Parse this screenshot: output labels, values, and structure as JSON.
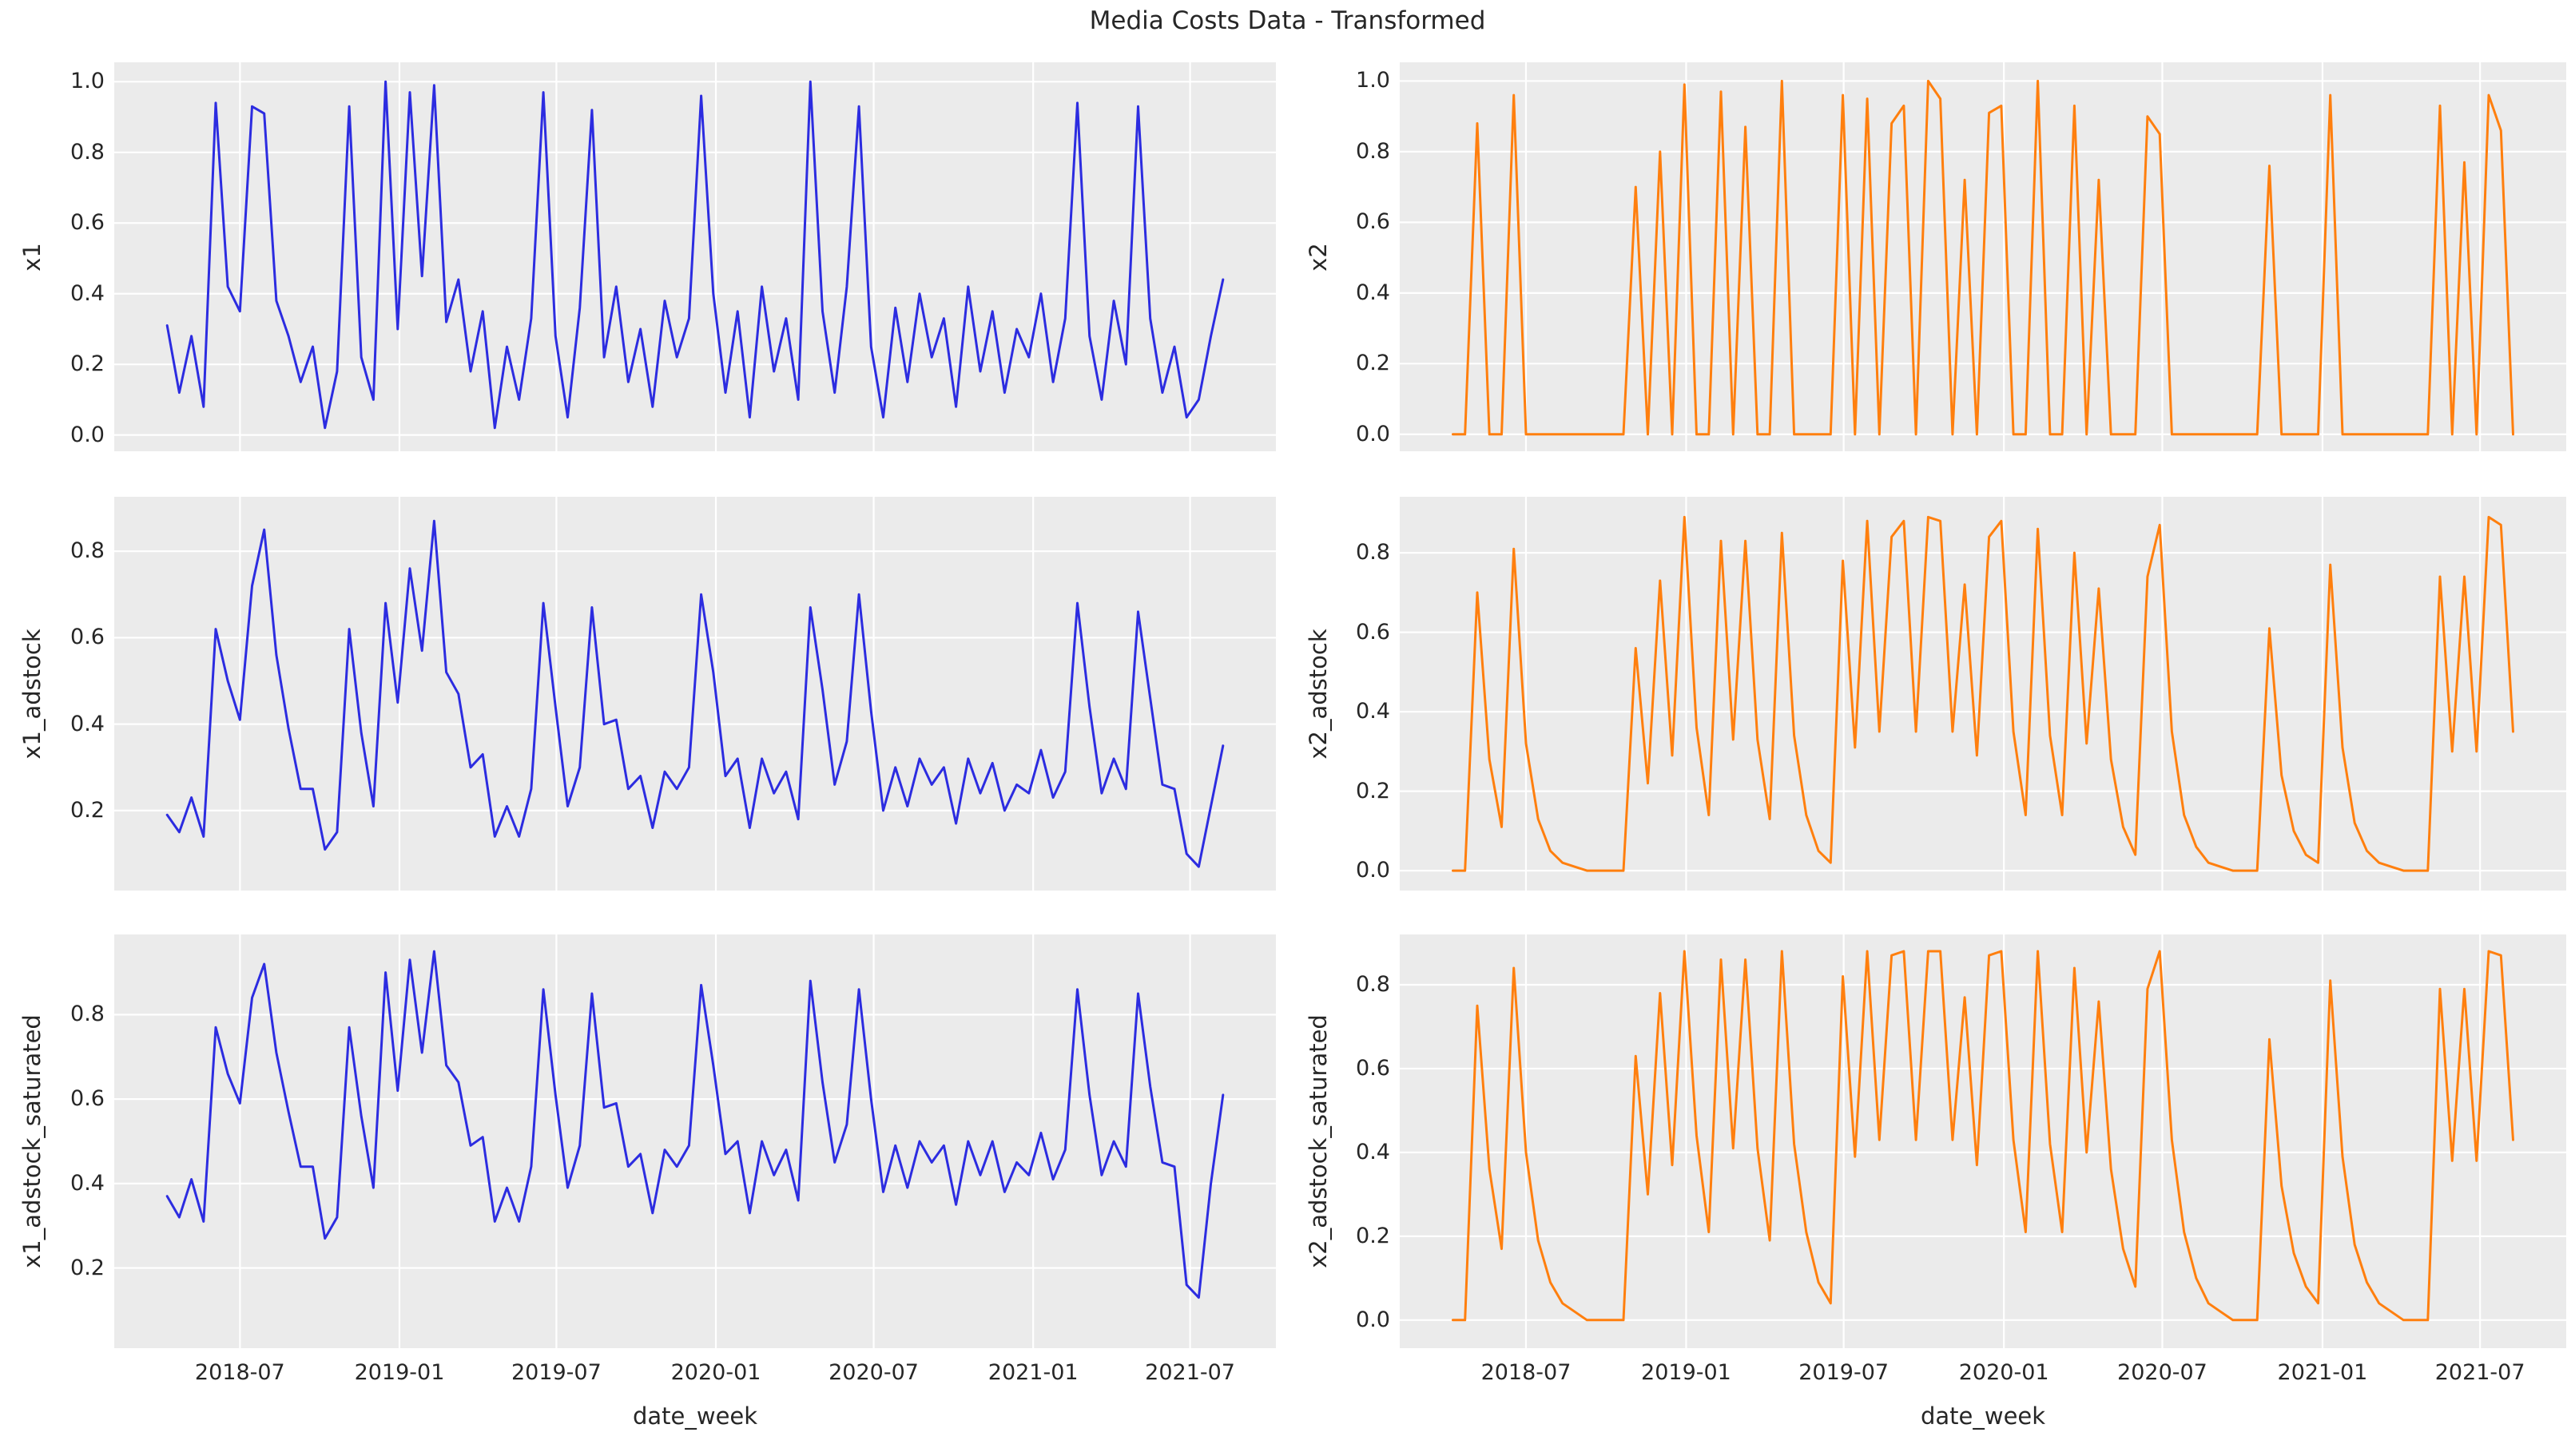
{
  "title": "Media Costs Data - Transformed",
  "xlabel": "date_week",
  "colors": {
    "x1_series": "#2c2ce0",
    "x2_series": "#ff7f0e",
    "axes_background": "#ebebeb",
    "grid": "#ffffff",
    "text": "#262626",
    "figure_background": "#ffffff"
  },
  "x_tick_labels": [
    "2018-07",
    "2019-01",
    "2019-07",
    "2020-01",
    "2020-07",
    "2021-01",
    "2021-07"
  ],
  "chart_data": {
    "type": "line",
    "layout": "3 rows x 2 columns of subplots, shared date x-axis",
    "grid": true,
    "legend": "none",
    "xlabel": "date_week",
    "xlim": [
      "2018-02-06",
      "2021-10-08"
    ],
    "x_dates": [
      "2018-04-08",
      "2018-04-22",
      "2018-05-06",
      "2018-05-20",
      "2018-06-03",
      "2018-06-17",
      "2018-07-01",
      "2018-07-15",
      "2018-07-29",
      "2018-08-12",
      "2018-08-26",
      "2018-09-09",
      "2018-09-23",
      "2018-10-07",
      "2018-10-21",
      "2018-11-04",
      "2018-11-18",
      "2018-12-02",
      "2018-12-16",
      "2018-12-30",
      "2019-01-13",
      "2019-01-27",
      "2019-02-10",
      "2019-02-24",
      "2019-03-10",
      "2019-03-24",
      "2019-04-07",
      "2019-04-21",
      "2019-05-05",
      "2019-05-19",
      "2019-06-02",
      "2019-06-16",
      "2019-06-30",
      "2019-07-14",
      "2019-07-28",
      "2019-08-11",
      "2019-08-25",
      "2019-09-08",
      "2019-09-22",
      "2019-10-06",
      "2019-10-20",
      "2019-11-03",
      "2019-11-17",
      "2019-12-01",
      "2019-12-15",
      "2019-12-29",
      "2020-01-12",
      "2020-01-26",
      "2020-02-09",
      "2020-02-23",
      "2020-03-08",
      "2020-03-22",
      "2020-04-05",
      "2020-04-19",
      "2020-05-03",
      "2020-05-17",
      "2020-05-31",
      "2020-06-14",
      "2020-06-28",
      "2020-07-12",
      "2020-07-26",
      "2020-08-09",
      "2020-08-23",
      "2020-09-06",
      "2020-09-20",
      "2020-10-04",
      "2020-10-18",
      "2020-11-01",
      "2020-11-15",
      "2020-11-29",
      "2020-12-13",
      "2020-12-27",
      "2021-01-10",
      "2021-01-24",
      "2021-02-07",
      "2021-02-21",
      "2021-03-07",
      "2021-03-21",
      "2021-04-04",
      "2021-04-18",
      "2021-05-02",
      "2021-05-16",
      "2021-05-30",
      "2021-06-13",
      "2021-06-27",
      "2021-07-11",
      "2021-07-25",
      "2021-08-08"
    ],
    "subplots": [
      {
        "ylabel": "x1",
        "series": "x1",
        "color": "#2c2ce0",
        "yticks": [
          0.0,
          0.2,
          0.4,
          0.6,
          0.8,
          1.0
        ],
        "ytick_labels": [
          "0.0",
          "0.2",
          "0.4",
          "0.6",
          "0.8",
          "1.0"
        ],
        "ylim": [
          -0.046,
          1.055
        ]
      },
      {
        "ylabel": "x2",
        "series": "x2",
        "color": "#ff7f0e",
        "yticks": [
          0.0,
          0.2,
          0.4,
          0.6,
          0.8,
          1.0
        ],
        "ytick_labels": [
          "0.0",
          "0.2",
          "0.4",
          "0.6",
          "0.8",
          "1.0"
        ],
        "ylim": [
          -0.048,
          1.053
        ]
      },
      {
        "ylabel": "x1_adstock",
        "series": "x1_adstock",
        "color": "#2c2ce0",
        "yticks": [
          0.2,
          0.4,
          0.6,
          0.8
        ],
        "ytick_labels": [
          "0.2",
          "0.4",
          "0.6",
          "0.8"
        ],
        "ylim": [
          0.015,
          0.926
        ]
      },
      {
        "ylabel": "x2_adstock",
        "series": "x2_adstock",
        "color": "#ff7f0e",
        "yticks": [
          0.0,
          0.2,
          0.4,
          0.6,
          0.8
        ],
        "ytick_labels": [
          "0.0",
          "0.2",
          "0.4",
          "0.6",
          "0.8"
        ],
        "ylim": [
          -0.05,
          0.941
        ]
      },
      {
        "ylabel": "x1_adstock_saturated",
        "series": "x1_adstock_saturated",
        "color": "#2c2ce0",
        "yticks": [
          0.2,
          0.4,
          0.6,
          0.8
        ],
        "ytick_labels": [
          "0.2",
          "0.4",
          "0.6",
          "0.8"
        ],
        "ylim": [
          0.01,
          0.99
        ]
      },
      {
        "ylabel": "x2_adstock_saturated",
        "series": "x2_adstock_saturated",
        "color": "#ff7f0e",
        "yticks": [
          0.0,
          0.2,
          0.4,
          0.6,
          0.8
        ],
        "ytick_labels": [
          "0.0",
          "0.2",
          "0.4",
          "0.6",
          "0.8"
        ],
        "ylim": [
          -0.067,
          0.92
        ]
      }
    ],
    "series": {
      "x1": [
        0.31,
        0.12,
        0.28,
        0.08,
        0.94,
        0.42,
        0.35,
        0.93,
        0.91,
        0.38,
        0.28,
        0.15,
        0.25,
        0.02,
        0.18,
        0.93,
        0.22,
        0.1,
        1.0,
        0.3,
        0.97,
        0.45,
        0.99,
        0.32,
        0.44,
        0.18,
        0.35,
        0.02,
        0.25,
        0.1,
        0.33,
        0.97,
        0.28,
        0.05,
        0.36,
        0.92,
        0.22,
        0.42,
        0.15,
        0.3,
        0.08,
        0.38,
        0.22,
        0.33,
        0.96,
        0.4,
        0.12,
        0.35,
        0.05,
        0.42,
        0.18,
        0.33,
        0.1,
        1.0,
        0.35,
        0.12,
        0.42,
        0.93,
        0.25,
        0.05,
        0.36,
        0.15,
        0.4,
        0.22,
        0.33,
        0.08,
        0.42,
        0.18,
        0.35,
        0.12,
        0.3,
        0.22,
        0.4,
        0.15,
        0.33,
        0.94,
        0.28,
        0.1,
        0.38,
        0.2,
        0.93,
        0.33,
        0.12,
        0.25,
        0.05,
        0.1,
        0.28,
        0.44
      ],
      "x1_adstock": [
        0.19,
        0.15,
        0.23,
        0.14,
        0.62,
        0.5,
        0.41,
        0.72,
        0.85,
        0.56,
        0.39,
        0.25,
        0.25,
        0.11,
        0.15,
        0.62,
        0.38,
        0.21,
        0.68,
        0.45,
        0.76,
        0.57,
        0.87,
        0.52,
        0.47,
        0.3,
        0.33,
        0.14,
        0.21,
        0.14,
        0.25,
        0.68,
        0.44,
        0.21,
        0.3,
        0.67,
        0.4,
        0.41,
        0.25,
        0.28,
        0.16,
        0.29,
        0.25,
        0.3,
        0.7,
        0.52,
        0.28,
        0.32,
        0.16,
        0.32,
        0.24,
        0.29,
        0.18,
        0.67,
        0.48,
        0.26,
        0.36,
        0.7,
        0.43,
        0.2,
        0.3,
        0.21,
        0.32,
        0.26,
        0.3,
        0.17,
        0.32,
        0.24,
        0.31,
        0.2,
        0.26,
        0.24,
        0.34,
        0.23,
        0.29,
        0.68,
        0.44,
        0.24,
        0.32,
        0.25,
        0.66,
        0.46,
        0.26,
        0.25,
        0.1,
        0.07,
        0.21,
        0.35
      ],
      "x1_adstock_saturated": [
        0.37,
        0.32,
        0.41,
        0.31,
        0.77,
        0.66,
        0.59,
        0.84,
        0.92,
        0.71,
        0.57,
        0.44,
        0.44,
        0.27,
        0.32,
        0.77,
        0.56,
        0.39,
        0.9,
        0.62,
        0.93,
        0.71,
        0.95,
        0.68,
        0.64,
        0.49,
        0.51,
        0.31,
        0.39,
        0.31,
        0.44,
        0.86,
        0.61,
        0.39,
        0.49,
        0.85,
        0.58,
        0.59,
        0.44,
        0.47,
        0.33,
        0.48,
        0.44,
        0.49,
        0.87,
        0.68,
        0.47,
        0.5,
        0.33,
        0.5,
        0.42,
        0.48,
        0.36,
        0.88,
        0.64,
        0.45,
        0.54,
        0.86,
        0.6,
        0.38,
        0.49,
        0.39,
        0.5,
        0.45,
        0.49,
        0.35,
        0.5,
        0.42,
        0.5,
        0.38,
        0.45,
        0.42,
        0.52,
        0.41,
        0.48,
        0.86,
        0.61,
        0.42,
        0.5,
        0.44,
        0.85,
        0.63,
        0.45,
        0.44,
        0.16,
        0.13,
        0.4,
        0.61
      ],
      "x2": [
        0,
        0,
        0.88,
        0,
        0,
        0.96,
        0,
        0,
        0,
        0,
        0,
        0,
        0,
        0,
        0,
        0.7,
        0,
        0.8,
        0,
        0.99,
        0,
        0,
        0.97,
        0,
        0.87,
        0,
        0,
        1.0,
        0,
        0,
        0,
        0,
        0.96,
        0,
        0.95,
        0,
        0.88,
        0.93,
        0,
        1.0,
        0.95,
        0,
        0.72,
        0,
        0.91,
        0.93,
        0,
        0,
        1.0,
        0,
        0,
        0.93,
        0,
        0.72,
        0,
        0,
        0,
        0.9,
        0.85,
        0,
        0,
        0,
        0,
        0,
        0,
        0,
        0,
        0.76,
        0,
        0,
        0,
        0,
        0.96,
        0,
        0,
        0,
        0,
        0,
        0,
        0,
        0,
        0.93,
        0,
        0.77,
        0,
        0.96,
        0.86,
        0
      ],
      "x2_adstock": [
        0,
        0,
        0.7,
        0.28,
        0.11,
        0.81,
        0.32,
        0.13,
        0.05,
        0.02,
        0.01,
        0,
        0,
        0,
        0,
        0.56,
        0.22,
        0.73,
        0.29,
        0.89,
        0.36,
        0.14,
        0.83,
        0.33,
        0.83,
        0.33,
        0.13,
        0.85,
        0.34,
        0.14,
        0.05,
        0.02,
        0.78,
        0.31,
        0.88,
        0.35,
        0.84,
        0.88,
        0.35,
        0.89,
        0.88,
        0.35,
        0.72,
        0.29,
        0.84,
        0.88,
        0.35,
        0.14,
        0.86,
        0.34,
        0.14,
        0.8,
        0.32,
        0.71,
        0.28,
        0.11,
        0.04,
        0.74,
        0.87,
        0.35,
        0.14,
        0.06,
        0.02,
        0.01,
        0,
        0,
        0,
        0.61,
        0.24,
        0.1,
        0.04,
        0.02,
        0.77,
        0.31,
        0.12,
        0.05,
        0.02,
        0.01,
        0,
        0,
        0,
        0.74,
        0.3,
        0.74,
        0.3,
        0.89,
        0.87,
        0.35
      ],
      "x2_adstock_saturated": [
        0,
        0,
        0.75,
        0.36,
        0.17,
        0.84,
        0.4,
        0.19,
        0.09,
        0.04,
        0.02,
        0,
        0,
        0,
        0,
        0.63,
        0.3,
        0.78,
        0.37,
        0.88,
        0.44,
        0.21,
        0.86,
        0.41,
        0.86,
        0.41,
        0.19,
        0.88,
        0.42,
        0.21,
        0.09,
        0.04,
        0.82,
        0.39,
        0.88,
        0.43,
        0.87,
        0.88,
        0.43,
        0.88,
        0.88,
        0.43,
        0.77,
        0.37,
        0.87,
        0.88,
        0.43,
        0.21,
        0.88,
        0.42,
        0.21,
        0.84,
        0.4,
        0.76,
        0.36,
        0.17,
        0.08,
        0.79,
        0.88,
        0.43,
        0.21,
        0.1,
        0.04,
        0.02,
        0,
        0,
        0,
        0.67,
        0.32,
        0.16,
        0.08,
        0.04,
        0.81,
        0.39,
        0.18,
        0.09,
        0.04,
        0.02,
        0,
        0,
        0,
        0.79,
        0.38,
        0.79,
        0.38,
        0.88,
        0.87,
        0.43
      ]
    }
  }
}
